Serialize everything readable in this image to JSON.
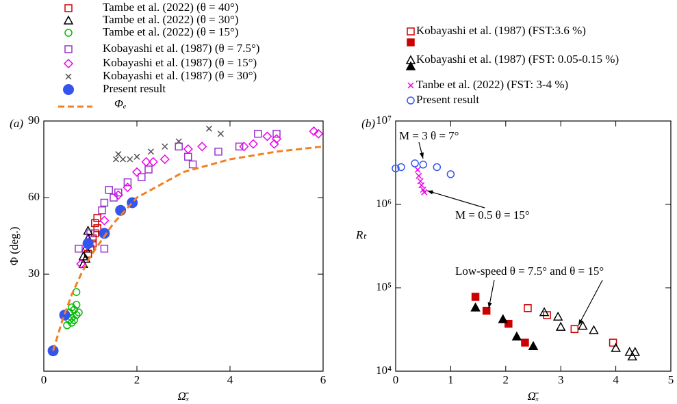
{
  "chart_data": [
    {
      "type": "scatter",
      "panel_label": "(a)",
      "x_label": "Ω̄ₓ",
      "y_label": "Φ (deg.)",
      "xlim": [
        0,
        6
      ],
      "xticks": [
        0,
        2,
        4,
        6
      ],
      "ylim": [
        -8,
        90
      ],
      "yticks": [
        30,
        60,
        90
      ],
      "series": [
        {
          "name": "Tambe et al. (2022) (θ = 40°)",
          "color": "#cc0000",
          "marker": "square-open",
          "x": [
            0.95,
            1.0,
            1.05,
            1.1,
            1.1,
            1.15,
            1.15,
            1.05
          ],
          "y": [
            38,
            40,
            44,
            46,
            50,
            52,
            48,
            42
          ]
        },
        {
          "name": "Tambe et al. (2022) (θ = 30°)",
          "color": "#000000",
          "marker": "triangle-open",
          "x": [
            0.85,
            0.85,
            0.9,
            0.95,
            0.95,
            0.9
          ],
          "y": [
            34,
            37,
            40,
            44,
            47,
            36
          ]
        },
        {
          "name": "Tambe et al. (2022) (θ = 15°)",
          "color": "#00bb00",
          "marker": "circle-open",
          "x": [
            0.5,
            0.55,
            0.6,
            0.65,
            0.7,
            0.7,
            0.7,
            0.6,
            0.55,
            0.75,
            0.65,
            0.6
          ],
          "y": [
            10,
            12,
            13,
            16,
            14,
            18,
            23,
            17,
            15,
            15,
            12,
            11
          ]
        },
        {
          "name": "Kobayashi et al. (1987) (θ = 7.5°)",
          "color": "#9933cc",
          "marker": "square-open",
          "x": [
            0.75,
            1.0,
            1.25,
            1.3,
            1.4,
            1.5,
            1.3,
            1.6,
            1.8,
            2.1,
            2.25,
            2.9,
            3.1,
            3.2,
            3.75,
            4.2,
            4.6,
            5.0
          ],
          "y": [
            40,
            46,
            55,
            58,
            63,
            60,
            40,
            62,
            66,
            68,
            71,
            80,
            76,
            73,
            78,
            80,
            85,
            85
          ]
        },
        {
          "name": "Kobayashi et al. (1987) (θ = 15°)",
          "color": "#ee00ee",
          "marker": "diamond-open",
          "x": [
            0.8,
            1.3,
            1.6,
            1.8,
            2.0,
            2.2,
            2.35,
            2.6,
            3.1,
            3.4,
            4.3,
            4.5,
            4.8,
            4.95,
            5.0,
            5.8,
            5.9
          ],
          "y": [
            34,
            51,
            61,
            64,
            70,
            74,
            74,
            75,
            79,
            80,
            80,
            81,
            84,
            81,
            83,
            86,
            85
          ]
        },
        {
          "name": "Kobayashi et al. (1987) (θ = 30°)",
          "color": "#555555",
          "marker": "x",
          "x": [
            1.55,
            1.6,
            1.7,
            1.85,
            2.0,
            2.3,
            2.6,
            2.9,
            3.55,
            3.8
          ],
          "y": [
            75,
            77,
            75,
            75,
            76,
            78,
            80,
            82,
            87,
            85
          ]
        },
        {
          "name": "Present result",
          "color": "#3355ee",
          "marker": "circle-filled",
          "x": [
            0.2,
            0.45,
            0.95,
            1.3,
            1.65,
            1.9
          ],
          "y": [
            0,
            14,
            42,
            46,
            55,
            58
          ]
        },
        {
          "name": "Φₑ",
          "color": "#f08020",
          "marker": "dashed-line",
          "x": [
            0.2,
            0.4,
            0.6,
            0.8,
            1.0,
            1.5,
            2,
            3,
            4,
            5,
            6
          ],
          "y": [
            0,
            12,
            22,
            30,
            37,
            50,
            60,
            70,
            75,
            78,
            80
          ]
        }
      ]
    },
    {
      "type": "scatter",
      "panel_label": "(b)",
      "x_label": "Ω̄ₓ",
      "y_label": "Rₜ",
      "log_y": true,
      "xlim": [
        0,
        5
      ],
      "xticks": [
        0,
        1,
        2,
        3,
        4,
        5
      ],
      "ylim": [
        10000,
        10000000
      ],
      "yticks": [
        {
          "value": 10000,
          "label": "10⁴"
        },
        {
          "value": 100000,
          "label": "10⁵"
        },
        {
          "value": 1000000,
          "label": "10⁶"
        },
        {
          "value": 10000000,
          "label": "10⁷"
        }
      ],
      "annotations": [
        "M = 3  θ = 7°",
        "M = 0.5 θ = 15°",
        "Low-speed θ = 7.5° and θ = 15°"
      ],
      "series": [
        {
          "name": "Kobayashi et al. (1987) (FST:3.6 %)",
          "color": "#cc0000",
          "marker": "square-open",
          "x": [
            2.4,
            2.75,
            3.25,
            3.95
          ],
          "y": [
            57000,
            47000,
            32000,
            22000
          ]
        },
        {
          "color": "#cc0000",
          "marker": "square-filled",
          "x": [
            1.45,
            1.65,
            2.05,
            2.35
          ],
          "y": [
            78000,
            53000,
            37000,
            22000
          ]
        },
        {
          "name": "Kobayashi et al. (1987) (FST: 0.05-0.15 %)",
          "color": "#000000",
          "marker": "triangle-open",
          "x": [
            2.7,
            2.95,
            3.0,
            3.4,
            3.6,
            4.0,
            4.25,
            4.3,
            4.35
          ],
          "y": [
            51000,
            45000,
            34000,
            35000,
            31000,
            19000,
            17000,
            15000,
            17000
          ]
        },
        {
          "color": "#000000",
          "marker": "triangle-filled",
          "x": [
            1.45,
            1.95,
            2.2,
            2.5
          ],
          "y": [
            58000,
            42000,
            26000,
            20000
          ]
        },
        {
          "name": "Tanbe et al. (2022) (FST: 3-4 %)",
          "color": "#ee00ee",
          "marker": "x",
          "x": [
            0.4,
            0.42,
            0.45,
            0.47,
            0.5,
            0.52
          ],
          "y": [
            2600000,
            2200000,
            1900000,
            1700000,
            1500000,
            1400000
          ]
        },
        {
          "name": "Present result",
          "color": "#3355ee",
          "marker": "circle-open",
          "x": [
            0.0,
            0.1,
            0.35,
            0.5,
            0.75,
            1.0
          ],
          "y": [
            2700000,
            2800000,
            3100000,
            3000000,
            2800000,
            2300000
          ]
        }
      ]
    }
  ]
}
